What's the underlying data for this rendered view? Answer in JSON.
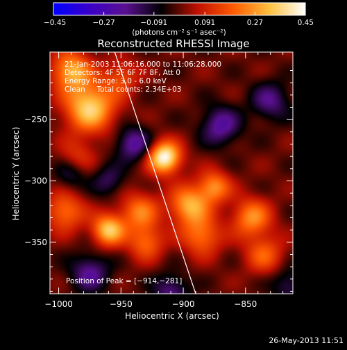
{
  "chart_data": {
    "type": "heatmap",
    "title": "Reconstructed RHESSI Image",
    "xlabel": "Heliocentric X (arcsec)",
    "ylabel": "Heliocentric Y (arcsec)",
    "xlim": [
      -1007,
      -812
    ],
    "ylim": [
      -392,
      -195
    ],
    "x_ticks": [
      -1000,
      -950,
      -900,
      -850
    ],
    "x_tick_labels": [
      "−1000",
      "−950",
      "−900",
      "−850"
    ],
    "y_ticks": [
      -250,
      -300,
      -350
    ],
    "y_tick_labels": [
      "−250",
      "−300",
      "−350"
    ],
    "colorbar": {
      "range": [
        -0.45,
        0.45
      ],
      "ticks": [
        -0.45,
        -0.27,
        -0.091,
        0.091,
        0.27,
        0.45
      ],
      "tick_labels": [
        "−0.45",
        "−0.27",
        "−0.091",
        "0.091",
        "0.27",
        "0.45"
      ],
      "unit_label": "(photons cm⁻² s⁻¹ asec⁻²)",
      "colors": [
        "#0000ff",
        "#3a00c8",
        "#5a1090",
        "#000000",
        "#c01000",
        "#ff5a00",
        "#ffc040",
        "#ffffff"
      ]
    },
    "sources": [
      {
        "x": -915,
        "y": -281,
        "peak": 0.45,
        "sigma": 9
      },
      {
        "x": -975,
        "y": -240,
        "peak": 0.36,
        "sigma": 14
      },
      {
        "x": -990,
        "y": -210,
        "peak": 0.3,
        "sigma": 11
      },
      {
        "x": -950,
        "y": -215,
        "peak": 0.15,
        "sigma": 10
      },
      {
        "x": -960,
        "y": -340,
        "peak": 0.34,
        "sigma": 9
      },
      {
        "x": -935,
        "y": -325,
        "peak": 0.22,
        "sigma": 11
      },
      {
        "x": -930,
        "y": -350,
        "peak": 0.2,
        "sigma": 10
      },
      {
        "x": -995,
        "y": -325,
        "peak": 0.22,
        "sigma": 11
      },
      {
        "x": -895,
        "y": -320,
        "peak": 0.3,
        "sigma": 11
      },
      {
        "x": -885,
        "y": -345,
        "peak": 0.22,
        "sigma": 11
      },
      {
        "x": -875,
        "y": -305,
        "peak": 0.25,
        "sigma": 9
      },
      {
        "x": -845,
        "y": -330,
        "peak": 0.25,
        "sigma": 11
      },
      {
        "x": -835,
        "y": -360,
        "peak": 0.18,
        "sigma": 11
      },
      {
        "x": -985,
        "y": -280,
        "peak": 0.12,
        "sigma": 10
      },
      {
        "x": -940,
        "y": -270,
        "peak": -0.22,
        "sigma": 10
      },
      {
        "x": -870,
        "y": -255,
        "peak": -0.22,
        "sigma": 11
      },
      {
        "x": -830,
        "y": -235,
        "peak": -0.18,
        "sigma": 11
      },
      {
        "x": -975,
        "y": -375,
        "peak": -0.2,
        "sigma": 11
      },
      {
        "x": -990,
        "y": -295,
        "peak": -0.12,
        "sigma": 9
      },
      {
        "x": -910,
        "y": -390,
        "peak": -0.18,
        "sigma": 10
      },
      {
        "x": -960,
        "y": -300,
        "peak": -0.14,
        "sigma": 9
      },
      {
        "x": -815,
        "y": -385,
        "peak": -0.14,
        "sigma": 10
      }
    ],
    "limb_line": [
      {
        "x": -955,
        "y": -195
      },
      {
        "x": -890,
        "y": -392
      }
    ],
    "annotations": [
      "21-Jan-2003 11:06:16.000 to 11:06:28.000",
      "Detectors: 4F 5F 6F 7F 8F, Att 0",
      "Energy Range: 3.0 - 6.0 keV",
      "Clean     Total counts: 2.34E+03"
    ],
    "peak_label": "Position of Peak = [−914,−281]"
  },
  "footer": {
    "date": "26-May-2013 11:51"
  }
}
